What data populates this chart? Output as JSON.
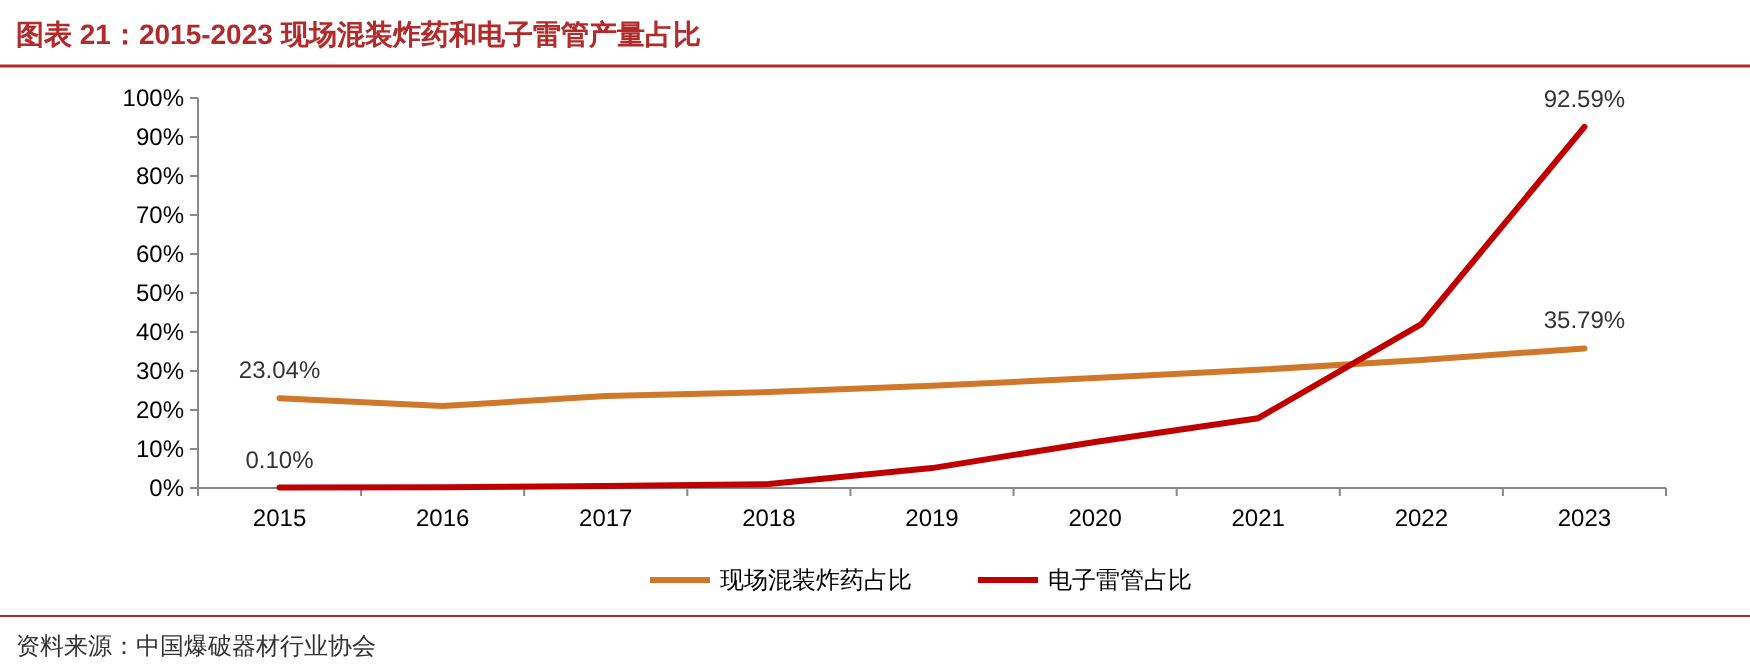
{
  "chart_data": {
    "type": "line",
    "title": "图表 21：2015-2023 现场混装炸药和电子雷管产量占比",
    "categories": [
      "2015",
      "2016",
      "2017",
      "2018",
      "2019",
      "2020",
      "2021",
      "2022",
      "2023"
    ],
    "series": [
      {
        "name": "现场混装炸药占比",
        "color": "#d0782a",
        "values": [
          23.04,
          21.0,
          23.6,
          24.6,
          26.2,
          28.2,
          30.3,
          32.8,
          35.79
        ]
      },
      {
        "name": "电子雷管占比",
        "color": "#c00000",
        "values": [
          0.1,
          0.2,
          0.5,
          1.0,
          5.1,
          11.8,
          17.9,
          42.0,
          92.59
        ]
      }
    ],
    "ylim": [
      0,
      100
    ],
    "yticks": [
      {
        "value": 0,
        "label": "0%"
      },
      {
        "value": 10,
        "label": "10%"
      },
      {
        "value": 20,
        "label": "20%"
      },
      {
        "value": 30,
        "label": "30%"
      },
      {
        "value": 40,
        "label": "40%"
      },
      {
        "value": 50,
        "label": "50%"
      },
      {
        "value": 60,
        "label": "60%"
      },
      {
        "value": 70,
        "label": "70%"
      },
      {
        "value": 80,
        "label": "80%"
      },
      {
        "value": 90,
        "label": "90%"
      },
      {
        "value": 100,
        "label": "100%"
      }
    ],
    "legend": "bottom",
    "annotations": [
      {
        "text": "23.04%",
        "x": "2015",
        "y": 23.04
      },
      {
        "text": "0.10%",
        "x": "2015",
        "y": 0.1
      },
      {
        "text": "92.59%",
        "x": "2023",
        "y": 92.59
      },
      {
        "text": "35.79%",
        "x": "2023",
        "y": 35.79
      },
      "资料来源：中国爆破器材行业协会"
    ]
  }
}
